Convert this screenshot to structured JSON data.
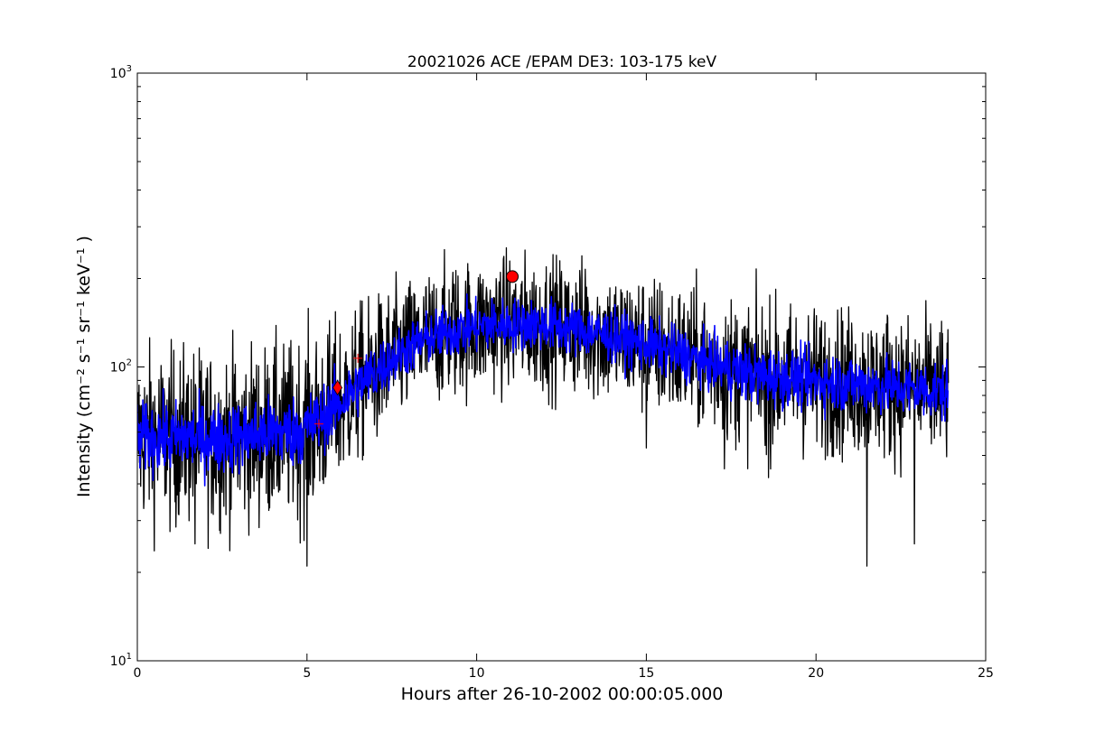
{
  "chart_data": {
    "type": "line",
    "title": "20021026 ACE /EPAM DE3: 103-175 keV",
    "xlabel": "Hours after 26-10-2002 00:00:05.000",
    "ylabel": "Intensity (cm⁻² s⁻¹ sr⁻¹ keV⁻¹ )",
    "xlim": [
      0,
      25
    ],
    "ylim": [
      10,
      1000
    ],
    "yscale": "log",
    "x_ticks": [
      0,
      5,
      10,
      15,
      20,
      25
    ],
    "x_tick_labels": [
      "0",
      "5",
      "10",
      "15",
      "20",
      "25"
    ],
    "y_ticks": [
      10,
      100,
      1000
    ],
    "y_tick_labels": [
      "10¹",
      "10²",
      "10³"
    ],
    "grid": false,
    "legend": "none",
    "series": [
      {
        "role": "raw-intensity",
        "color": "#000000",
        "x": [
          0.0,
          0.5,
          1.0,
          1.5,
          2.0,
          2.5,
          3.0,
          3.5,
          4.0,
          4.5,
          5.0,
          5.5,
          6.0,
          6.5,
          7.0,
          7.5,
          8.0,
          8.5,
          9.0,
          9.5,
          10.0,
          10.5,
          11.0,
          11.5,
          12.0,
          12.5,
          13.0,
          13.5,
          14.0,
          14.5,
          15.0,
          15.5,
          16.0,
          16.5,
          17.0,
          17.5,
          18.0,
          18.5,
          19.0,
          19.5,
          20.0,
          20.5,
          21.0,
          21.5,
          22.0,
          22.5,
          23.0,
          23.5,
          23.9
        ],
        "y": [
          57,
          58,
          57,
          58,
          57,
          57,
          58,
          59,
          60,
          60,
          62,
          68,
          76,
          86,
          96,
          106,
          116,
          124,
          130,
          134,
          137,
          139,
          140,
          140,
          139,
          137,
          134,
          131,
          127,
          123,
          119,
          115,
          111,
          106,
          102,
          98,
          95,
          93,
          92,
          91,
          90,
          89,
          88,
          87,
          86,
          85,
          84,
          83,
          82
        ],
        "spread": [
          0.3,
          0.3,
          0.3,
          0.3,
          0.3,
          0.3,
          0.3,
          0.3,
          0.3,
          0.3,
          0.32,
          0.3,
          0.28,
          0.27,
          0.25,
          0.24,
          0.23,
          0.23,
          0.23,
          0.23,
          0.23,
          0.23,
          0.23,
          0.23,
          0.23,
          0.23,
          0.23,
          0.23,
          0.23,
          0.23,
          0.24,
          0.24,
          0.24,
          0.24,
          0.24,
          0.25,
          0.25,
          0.25,
          0.25,
          0.25,
          0.25,
          0.25,
          0.25,
          0.25,
          0.25,
          0.25,
          0.25,
          0.25,
          0.25
        ],
        "spikes_high": [
          [
            10.7,
            210
          ],
          [
            9.3,
            210
          ],
          [
            13.2,
            215
          ],
          [
            22.1,
            150
          ]
        ],
        "spikes_low": [
          [
            5.0,
            21
          ],
          [
            21.5,
            21
          ],
          [
            22.9,
            25
          ],
          [
            1.7,
            25
          ],
          [
            15.0,
            53
          ],
          [
            17.3,
            45
          ],
          [
            18.6,
            42
          ]
        ]
      },
      {
        "role": "smoothed-intensity",
        "color": "#0000ff",
        "x": [
          0.0,
          0.5,
          1.0,
          1.5,
          2.0,
          2.5,
          3.0,
          3.5,
          4.0,
          4.5,
          5.0,
          5.5,
          6.0,
          6.5,
          7.0,
          7.5,
          8.0,
          8.5,
          9.0,
          9.5,
          10.0,
          10.5,
          11.0,
          11.5,
          12.0,
          12.5,
          13.0,
          13.5,
          14.0,
          14.5,
          15.0,
          15.5,
          16.0,
          16.5,
          17.0,
          17.5,
          18.0,
          18.5,
          19.0,
          19.5,
          20.0,
          20.5,
          21.0,
          21.5,
          22.0,
          22.5,
          23.0,
          23.5,
          23.9
        ],
        "y": [
          57,
          58,
          57,
          58,
          57,
          57,
          58,
          59,
          60,
          60,
          62,
          68,
          76,
          86,
          96,
          106,
          116,
          124,
          130,
          134,
          137,
          139,
          140,
          140,
          139,
          137,
          134,
          131,
          127,
          123,
          119,
          115,
          111,
          106,
          102,
          98,
          95,
          93,
          92,
          91,
          90,
          89,
          88,
          87,
          86,
          85,
          84,
          83,
          82
        ],
        "spread": [
          0.12,
          0.12,
          0.12,
          0.12,
          0.12,
          0.12,
          0.12,
          0.12,
          0.12,
          0.12,
          0.12,
          0.11,
          0.11,
          0.1,
          0.1,
          0.09,
          0.09,
          0.09,
          0.09,
          0.09,
          0.09,
          0.09,
          0.09,
          0.09,
          0.09,
          0.09,
          0.09,
          0.09,
          0.09,
          0.09,
          0.09,
          0.09,
          0.09,
          0.09,
          0.09,
          0.1,
          0.1,
          0.1,
          0.1,
          0.1,
          0.1,
          0.1,
          0.1,
          0.1,
          0.1,
          0.1,
          0.1,
          0.1,
          0.1
        ]
      }
    ],
    "markers": [
      {
        "name": "onset",
        "shape": "diamond",
        "color": "#ff0000",
        "x": 5.9,
        "y": 85
      },
      {
        "name": "peak",
        "shape": "circle",
        "color": "#ff0000",
        "x": 11.05,
        "y": 203
      },
      {
        "name": "plus-1",
        "shape": "plus",
        "color": "#ff0000",
        "x": 5.35,
        "y": 64
      },
      {
        "name": "plus-2",
        "shape": "plus",
        "color": "#ff0000",
        "x": 6.5,
        "y": 107
      }
    ]
  }
}
